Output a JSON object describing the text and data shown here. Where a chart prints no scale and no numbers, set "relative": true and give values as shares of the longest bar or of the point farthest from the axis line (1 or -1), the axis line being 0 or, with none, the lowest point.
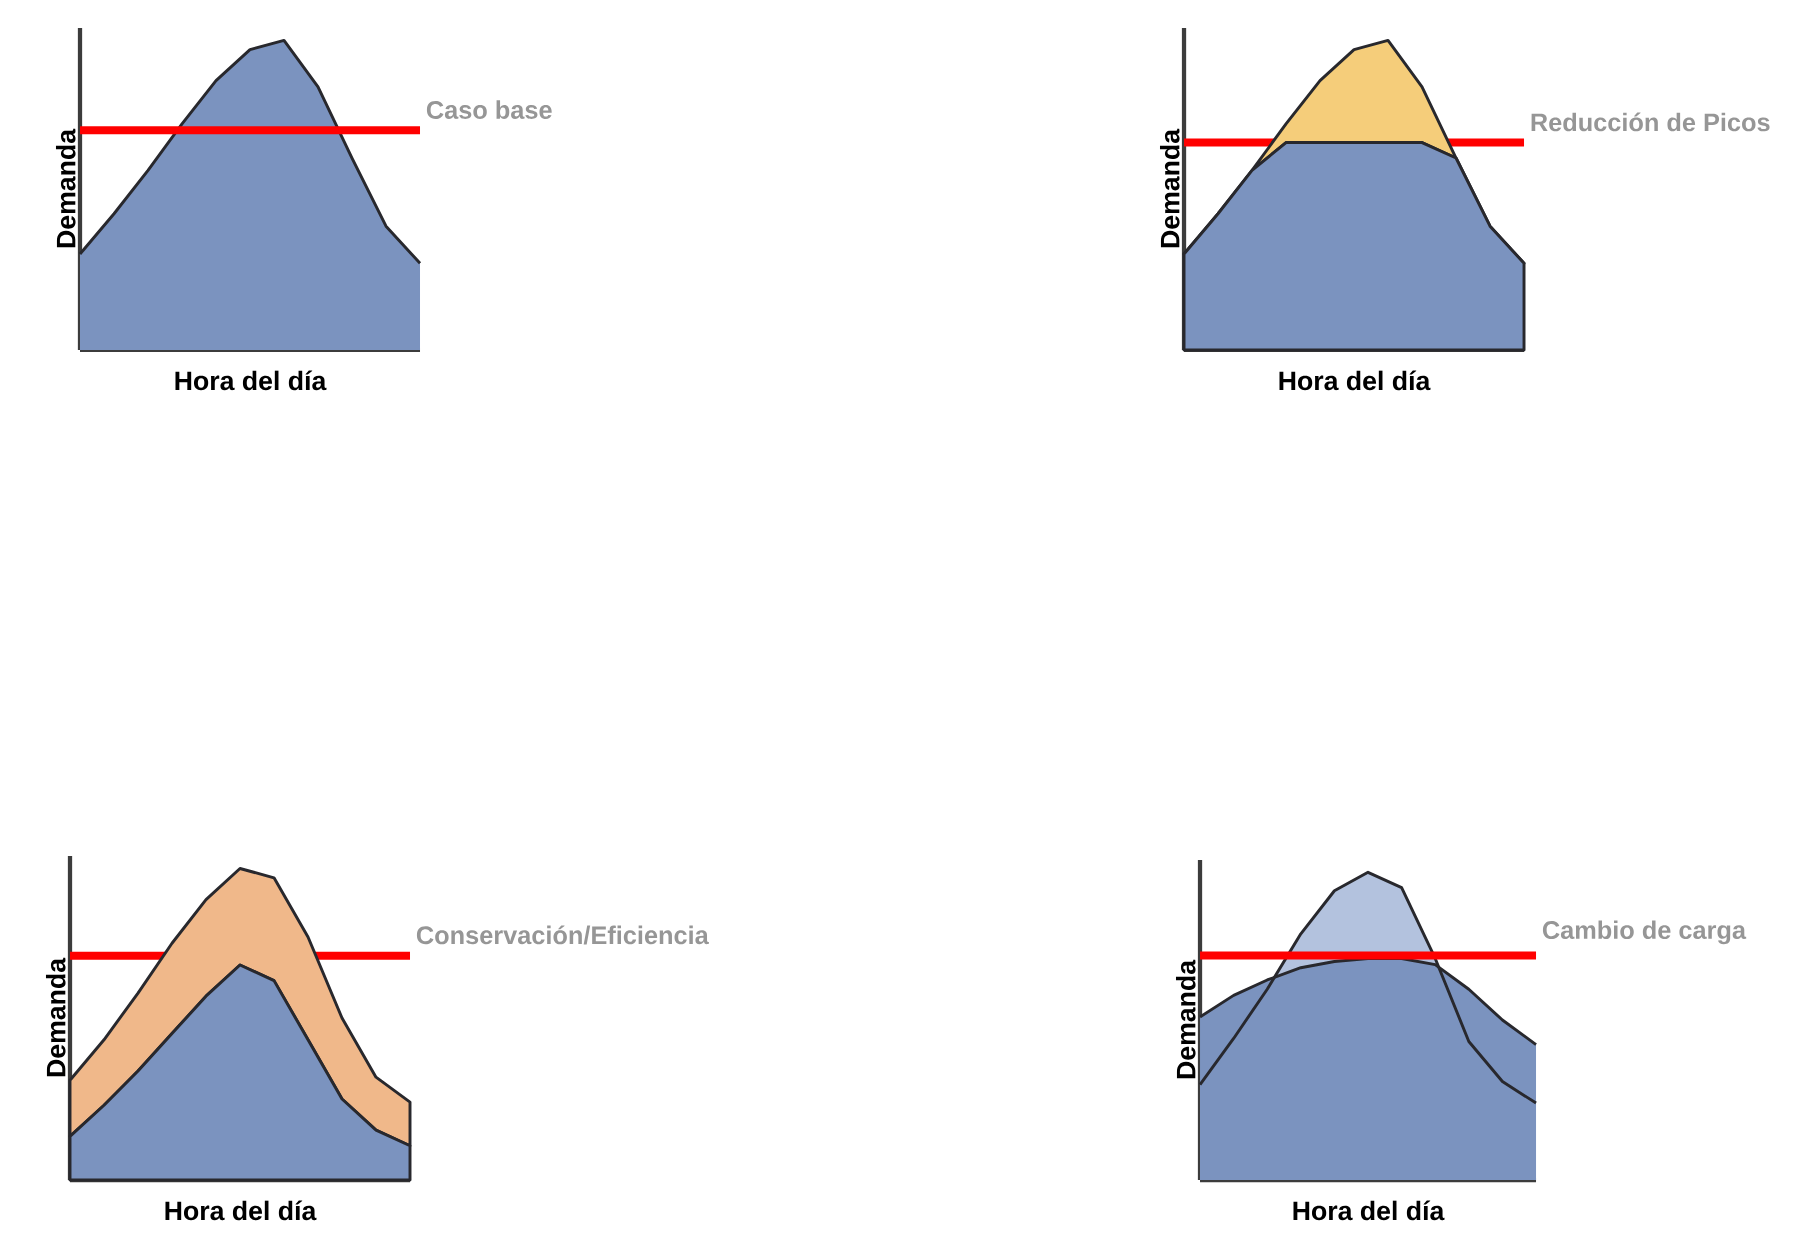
{
  "chart_data": [
    {
      "type": "area",
      "xlabel": "Hora del día",
      "ylabel": "Demanda",
      "relative": true,
      "categories": [
        null,
        null,
        null,
        null,
        null,
        null,
        null,
        null,
        null,
        null,
        null
      ],
      "series": [
        {
          "color": "#7b93bf",
          "values": [
            0.31,
            0.44,
            0.58,
            0.73,
            0.87,
            0.97,
            1.0,
            0.85,
            0.62,
            0.4,
            0.28
          ]
        }
      ],
      "ref_lines": [
        {
          "axis": "y",
          "value": 0.71,
          "label": "Caso base",
          "color": "#ff0000"
        }
      ]
    },
    {
      "type": "area",
      "xlabel": "Hora del día",
      "ylabel": "Demanda",
      "relative": true,
      "stacked": true,
      "categories": [
        null,
        null,
        null,
        null,
        null,
        null,
        null,
        null,
        null,
        null,
        null
      ],
      "series": [
        {
          "color": "#7b93bf",
          "values": [
            0.31,
            0.44,
            0.58,
            0.67,
            0.67,
            0.67,
            0.67,
            0.67,
            0.62,
            0.4,
            0.28
          ]
        },
        {
          "color": "#f5cd7a",
          "values": [
            0,
            0,
            0,
            0.06,
            0.2,
            0.3,
            0.33,
            0.18,
            0,
            0,
            0
          ]
        }
      ],
      "ref_lines": [
        {
          "axis": "y",
          "value": 0.67,
          "label": "Reducción de Picos",
          "color": "#ff0000"
        }
      ]
    },
    {
      "type": "area",
      "xlabel": "Hora del día",
      "ylabel": "Demanda",
      "relative": true,
      "stacked": true,
      "categories": [
        null,
        null,
        null,
        null,
        null,
        null,
        null,
        null,
        null,
        null,
        null
      ],
      "series": [
        {
          "color": "#7b93bf",
          "values": [
            0.14,
            0.24,
            0.35,
            0.47,
            0.59,
            0.69,
            0.64,
            0.45,
            0.26,
            0.16,
            0.11
          ]
        },
        {
          "color": "#f0b88a",
          "values": [
            0.18,
            0.21,
            0.25,
            0.29,
            0.31,
            0.31,
            0.33,
            0.33,
            0.26,
            0.17,
            0.14
          ]
        }
      ],
      "ref_lines": [
        {
          "axis": "y",
          "value": 0.72,
          "label": "Conservación/Eficiencia",
          "color": "#ff0000"
        }
      ]
    },
    {
      "type": "area",
      "xlabel": "Hora del día",
      "ylabel": "Demanda",
      "relative": true,
      "categories": [
        null,
        null,
        null,
        null,
        null,
        null,
        null,
        null,
        null,
        null,
        null
      ],
      "series": [
        {
          "color": "#b3c2de",
          "values": [
            0.31,
            0.46,
            0.62,
            0.8,
            0.94,
            1.0,
            0.95,
            0.72,
            0.45,
            0.32,
            0.25
          ]
        },
        {
          "color": "#7b93bf",
          "values": [
            0.53,
            0.6,
            0.65,
            0.69,
            0.71,
            0.72,
            0.72,
            0.7,
            0.62,
            0.52,
            0.44
          ]
        }
      ],
      "ref_lines": [
        {
          "axis": "y",
          "value": 0.73,
          "label": "Cambio de carga",
          "color": "#ff0000"
        }
      ]
    }
  ]
}
